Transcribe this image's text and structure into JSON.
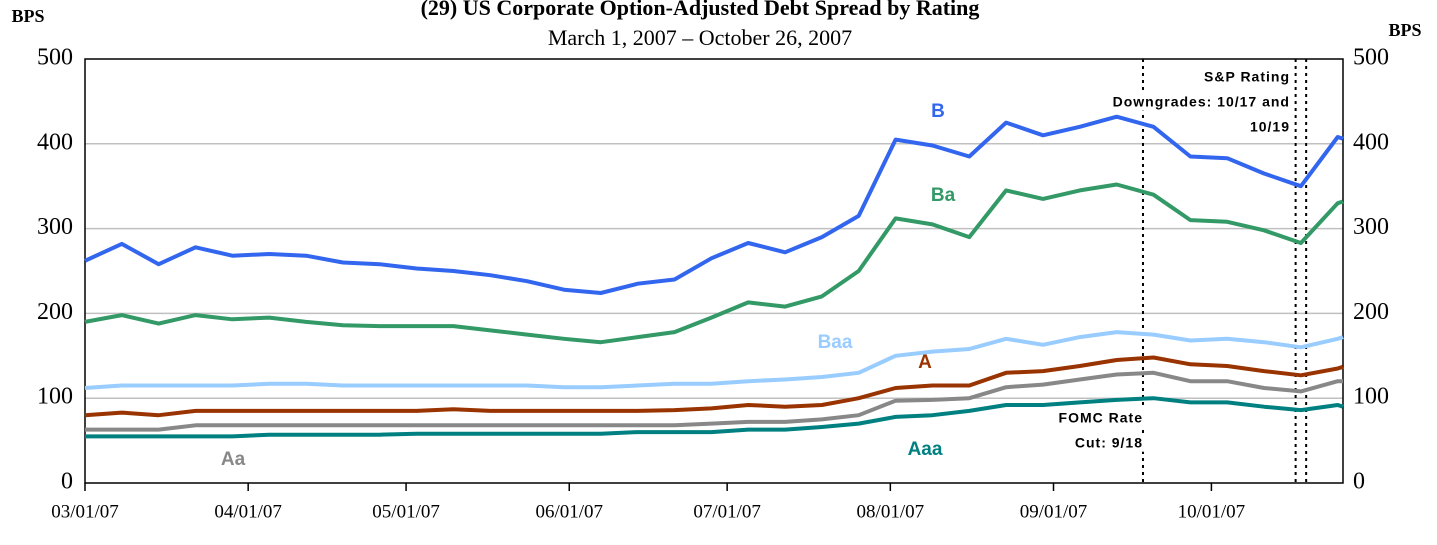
{
  "chart_data": {
    "type": "line",
    "title": "(29) US Corporate Option-Adjusted Debt Spread by Rating",
    "subtitle": "March 1, 2007 – October 26, 2007",
    "y_label": "BPS",
    "y2_label": "BPS",
    "ylim": [
      0,
      500
    ],
    "yticks": [
      0,
      100,
      200,
      300,
      400,
      500
    ],
    "grid": true,
    "xlim": [
      "2007-03-01",
      "2007-10-26"
    ],
    "xticks": [
      {
        "value": "2007-03-01",
        "label": "03/01/07"
      },
      {
        "value": "2007-04-01",
        "label": "04/01/07"
      },
      {
        "value": "2007-05-01",
        "label": "05/01/07"
      },
      {
        "value": "2007-06-01",
        "label": "06/01/07"
      },
      {
        "value": "2007-07-01",
        "label": "07/01/07"
      },
      {
        "value": "2007-08-01",
        "label": "08/01/07"
      },
      {
        "value": "2007-09-01",
        "label": "09/01/07"
      },
      {
        "value": "2007-10-01",
        "label": "10/01/07"
      }
    ],
    "x": [
      "2007-03-01",
      "2007-03-08",
      "2007-03-15",
      "2007-03-22",
      "2007-03-29",
      "2007-04-05",
      "2007-04-12",
      "2007-04-19",
      "2007-04-26",
      "2007-05-03",
      "2007-05-10",
      "2007-05-17",
      "2007-05-24",
      "2007-05-31",
      "2007-06-07",
      "2007-06-14",
      "2007-06-21",
      "2007-06-28",
      "2007-07-05",
      "2007-07-12",
      "2007-07-19",
      "2007-07-26",
      "2007-08-02",
      "2007-08-09",
      "2007-08-16",
      "2007-08-23",
      "2007-08-30",
      "2007-09-06",
      "2007-09-13",
      "2007-09-20",
      "2007-09-27",
      "2007-10-04",
      "2007-10-11",
      "2007-10-18",
      "2007-10-25",
      "2007-10-26"
    ],
    "series": [
      {
        "name": "B",
        "color": "#3366ee",
        "values": [
          262,
          282,
          258,
          278,
          268,
          270,
          268,
          260,
          258,
          253,
          250,
          245,
          238,
          228,
          224,
          235,
          240,
          265,
          283,
          272,
          290,
          315,
          405,
          398,
          385,
          425,
          410,
          420,
          432,
          420,
          385,
          383,
          365,
          350,
          408,
          406
        ]
      },
      {
        "name": "Ba",
        "color": "#339966",
        "values": [
          190,
          198,
          188,
          198,
          193,
          195,
          190,
          186,
          185,
          185,
          185,
          180,
          175,
          170,
          166,
          172,
          178,
          195,
          213,
          208,
          220,
          250,
          312,
          305,
          290,
          345,
          335,
          345,
          352,
          340,
          310,
          308,
          298,
          283,
          330,
          332
        ]
      },
      {
        "name": "Baa",
        "color": "#99ccff",
        "values": [
          112,
          115,
          115,
          115,
          115,
          117,
          117,
          115,
          115,
          115,
          115,
          115,
          115,
          113,
          113,
          115,
          117,
          117,
          120,
          122,
          125,
          130,
          150,
          155,
          158,
          170,
          163,
          172,
          178,
          175,
          168,
          170,
          166,
          160,
          170,
          172
        ]
      },
      {
        "name": "A",
        "color": "#993300",
        "values": [
          80,
          83,
          80,
          85,
          85,
          85,
          85,
          85,
          85,
          85,
          87,
          85,
          85,
          85,
          85,
          85,
          86,
          88,
          92,
          90,
          92,
          100,
          112,
          115,
          115,
          130,
          132,
          138,
          145,
          148,
          140,
          138,
          132,
          127,
          135,
          137
        ]
      },
      {
        "name": "Aa",
        "color": "#888888",
        "values": [
          63,
          63,
          63,
          68,
          68,
          68,
          68,
          68,
          68,
          68,
          68,
          68,
          68,
          68,
          68,
          68,
          68,
          70,
          72,
          72,
          75,
          80,
          97,
          98,
          100,
          113,
          116,
          122,
          128,
          130,
          120,
          120,
          112,
          108,
          120,
          120
        ]
      },
      {
        "name": "Aaa",
        "color": "#008080",
        "values": [
          55,
          55,
          55,
          55,
          55,
          57,
          57,
          57,
          57,
          58,
          58,
          58,
          58,
          58,
          58,
          60,
          60,
          60,
          63,
          63,
          66,
          70,
          78,
          80,
          85,
          92,
          92,
          95,
          98,
          100,
          95,
          95,
          90,
          86,
          92,
          90
        ]
      }
    ],
    "vlines": [
      "2007-09-18",
      "2007-10-17",
      "2007-10-19"
    ],
    "annotations": [
      {
        "lines": [
          "S&P Rating",
          "Downgrades: 10/17 and",
          "10/19"
        ]
      },
      {
        "lines": [
          "FOMC Rate",
          "Cut: 9/18"
        ]
      }
    ]
  }
}
